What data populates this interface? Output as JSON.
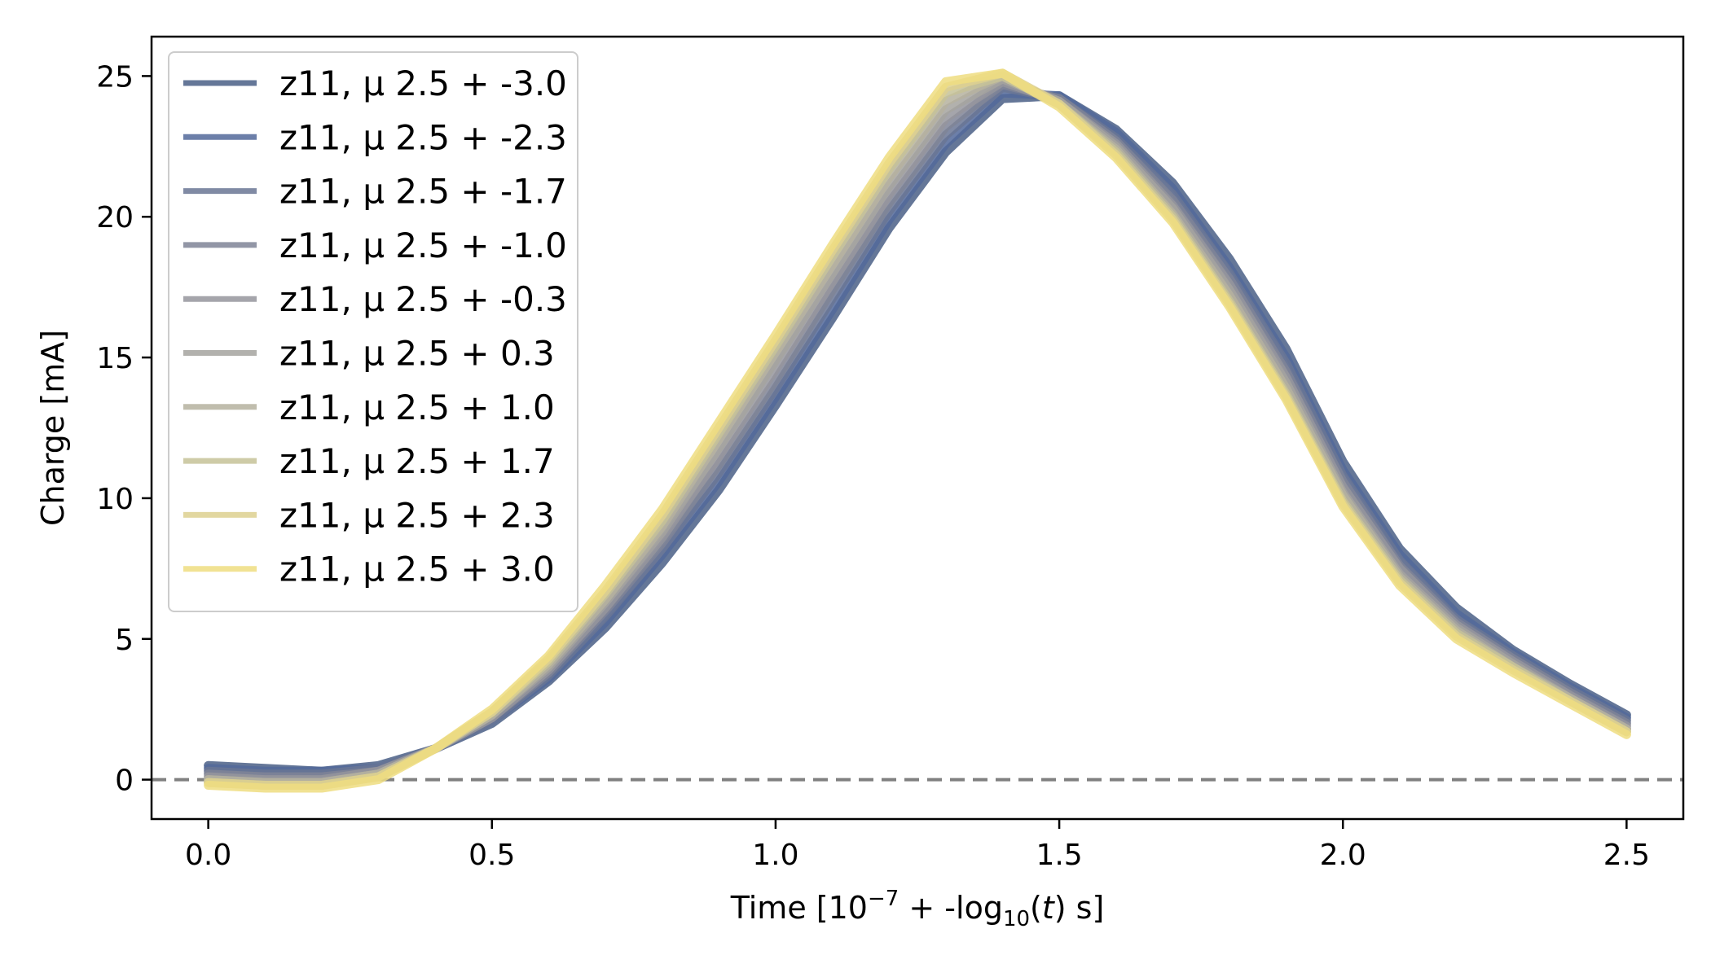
{
  "chart_data": {
    "type": "line",
    "title": "",
    "xlabel": {
      "prefix": "Time [10",
      "exponent": "−7",
      "middle": " + -log",
      "subscript": "10",
      "open": "(",
      "variable": "t",
      "suffix": ") s]"
    },
    "ylabel": "Charge [mA]",
    "xlim": [
      -0.1,
      2.6
    ],
    "ylim": [
      -1.4,
      26.4
    ],
    "xticks": [
      0.0,
      0.5,
      1.0,
      1.5,
      2.0,
      2.5
    ],
    "xtick_labels": [
      "0.0",
      "0.5",
      "1.0",
      "1.5",
      "2.0",
      "2.5"
    ],
    "yticks": [
      0,
      5,
      10,
      15,
      20,
      25
    ],
    "ytick_labels": [
      "0",
      "5",
      "10",
      "15",
      "20",
      "25"
    ],
    "grid": false,
    "reference_line": {
      "y": 0,
      "style": "dashed",
      "color": "#808080"
    },
    "legend": {
      "position": "upper-left"
    },
    "x": [
      0.0,
      0.1,
      0.2,
      0.3,
      0.4,
      0.5,
      0.6,
      0.7,
      0.8,
      0.9,
      1.0,
      1.1,
      1.2,
      1.3,
      1.4,
      1.5,
      1.6,
      1.7,
      1.8,
      1.9,
      2.0,
      2.1,
      2.2,
      2.3,
      2.4,
      2.5
    ],
    "series": [
      {
        "name": "z11, μ 2.5 + -3.0",
        "color": "#4a5f86",
        "values": [
          0.5,
          0.4,
          0.3,
          0.5,
          1.1,
          2.0,
          3.5,
          5.4,
          7.7,
          10.3,
          13.3,
          16.4,
          19.6,
          22.3,
          24.2,
          24.3,
          23.1,
          21.2,
          18.5,
          15.3,
          11.3,
          8.2,
          6.1,
          4.6,
          3.4,
          2.3
        ]
      },
      {
        "name": "z11, μ 2.5 + -2.3",
        "color": "#52699a",
        "values": [
          0.4,
          0.3,
          0.3,
          0.4,
          1.1,
          2.1,
          3.6,
          5.6,
          8.0,
          10.6,
          13.6,
          16.7,
          19.9,
          22.6,
          24.4,
          24.3,
          23.0,
          21.0,
          18.2,
          15.0,
          11.0,
          8.0,
          5.9,
          4.5,
          3.3,
          2.2
        ]
      },
      {
        "name": "z11, μ 2.5 + -1.7",
        "color": "#6a7594",
        "values": [
          0.3,
          0.2,
          0.2,
          0.4,
          1.1,
          2.1,
          3.7,
          5.8,
          8.2,
          10.9,
          13.9,
          17.1,
          20.2,
          22.9,
          24.6,
          24.2,
          22.8,
          20.8,
          18.0,
          14.8,
          10.8,
          7.8,
          5.7,
          4.4,
          3.2,
          2.1
        ]
      },
      {
        "name": "z11, μ 2.5 + -1.0",
        "color": "#7f8496",
        "values": [
          0.2,
          0.1,
          0.1,
          0.3,
          1.1,
          2.2,
          3.8,
          6.0,
          8.4,
          11.2,
          14.2,
          17.4,
          20.5,
          23.2,
          24.7,
          24.2,
          22.7,
          20.6,
          17.8,
          14.5,
          10.6,
          7.6,
          5.6,
          4.3,
          3.1,
          2.0
        ]
      },
      {
        "name": "z11, μ 2.5 + -0.3",
        "color": "#95959c",
        "values": [
          0.1,
          0.0,
          0.0,
          0.3,
          1.1,
          2.2,
          3.9,
          6.1,
          8.6,
          11.5,
          14.6,
          17.7,
          20.8,
          23.5,
          24.8,
          24.1,
          22.6,
          20.4,
          17.6,
          14.3,
          10.4,
          7.5,
          5.5,
          4.2,
          3.0,
          1.9
        ]
      },
      {
        "name": "z11, μ 2.5 + 0.3",
        "color": "#a4a39f",
        "values": [
          0.0,
          -0.1,
          -0.1,
          0.2,
          1.1,
          2.3,
          4.0,
          6.3,
          8.8,
          11.8,
          14.9,
          18.0,
          21.1,
          23.8,
          24.9,
          24.1,
          22.5,
          20.3,
          17.4,
          14.1,
          10.2,
          7.3,
          5.4,
          4.1,
          2.9,
          1.8
        ]
      },
      {
        "name": "z11, μ 2.5 + 1.0",
        "color": "#b5b19f",
        "values": [
          0.0,
          -0.1,
          -0.1,
          0.2,
          1.1,
          2.3,
          4.1,
          6.4,
          9.0,
          12.1,
          15.2,
          18.3,
          21.4,
          24.1,
          25.0,
          24.0,
          22.4,
          20.1,
          17.2,
          13.9,
          10.1,
          7.2,
          5.3,
          4.0,
          2.9,
          1.8
        ]
      },
      {
        "name": "z11, μ 2.5 + 1.7",
        "color": "#c6c298",
        "values": [
          -0.1,
          -0.2,
          -0.2,
          0.1,
          1.1,
          2.4,
          4.2,
          6.6,
          9.2,
          12.3,
          15.4,
          18.6,
          21.7,
          24.4,
          25.0,
          24.0,
          22.3,
          20.0,
          17.0,
          13.7,
          9.9,
          7.1,
          5.2,
          4.0,
          2.8,
          1.7
        ]
      },
      {
        "name": "z11, μ 2.5 + 2.3",
        "color": "#ddd08f",
        "values": [
          -0.1,
          -0.2,
          -0.2,
          0.1,
          1.1,
          2.4,
          4.3,
          6.7,
          9.4,
          12.5,
          15.6,
          18.8,
          21.9,
          24.6,
          25.1,
          24.0,
          22.2,
          19.9,
          16.9,
          13.6,
          9.8,
          7.0,
          5.1,
          3.9,
          2.8,
          1.7
        ]
      },
      {
        "name": "z11, μ 2.5 + 3.0",
        "color": "#eedd80",
        "values": [
          -0.2,
          -0.3,
          -0.3,
          0.0,
          1.1,
          2.5,
          4.4,
          6.9,
          9.6,
          12.7,
          15.8,
          19.0,
          22.1,
          24.8,
          25.1,
          23.9,
          22.1,
          19.8,
          16.8,
          13.5,
          9.7,
          6.9,
          5.0,
          3.8,
          2.7,
          1.6
        ]
      }
    ]
  }
}
